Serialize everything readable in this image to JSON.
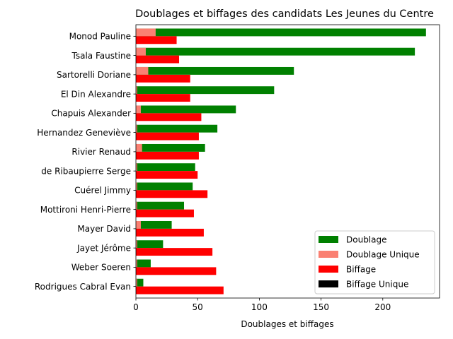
{
  "chart_data": {
    "type": "bar",
    "orientation": "horizontal",
    "title": "Doublages et biffages des candidats Les Jeunes du Centre",
    "xlabel": "Doublages et biffages",
    "ylabel": "",
    "xlim": [
      0,
      246
    ],
    "xticks": [
      "0",
      "50",
      "100",
      "150",
      "200"
    ],
    "grid": false,
    "legend_position": "bottom-right",
    "categories": [
      "Monod Pauline",
      "Tsala Faustine",
      "Sartorelli Doriane",
      "El Din Alexandre",
      "Chapuis Alexander",
      "Hernandez Geneviève",
      "Rivier Renaud",
      "de Ribaupierre Serge",
      "Cuérel Jimmy",
      "Mottironi Henri-Pierre",
      "Mayer David",
      "Jayet Jérôme",
      "Weber Soeren",
      "Rodrigues Cabral Evan"
    ],
    "series": [
      {
        "name": "Doublage",
        "color": "#008000",
        "values": [
          235,
          226,
          128,
          112,
          81,
          66,
          56,
          48,
          46,
          39,
          29,
          22,
          12,
          6
        ]
      },
      {
        "name": "Doublage Unique",
        "color": "#fa8072",
        "values": [
          16,
          8,
          10,
          1,
          4,
          1,
          5,
          1,
          1,
          1,
          4,
          1,
          1,
          1
        ]
      },
      {
        "name": "Biffage",
        "color": "#ff0000",
        "values": [
          33,
          35,
          44,
          44,
          53,
          51,
          51,
          50,
          58,
          47,
          55,
          62,
          65,
          71
        ]
      },
      {
        "name": "Biffage Unique",
        "color": "#000000",
        "values": [
          0,
          0,
          0,
          0,
          0,
          0,
          0,
          0,
          0,
          0,
          0,
          0,
          0,
          0
        ]
      }
    ]
  }
}
